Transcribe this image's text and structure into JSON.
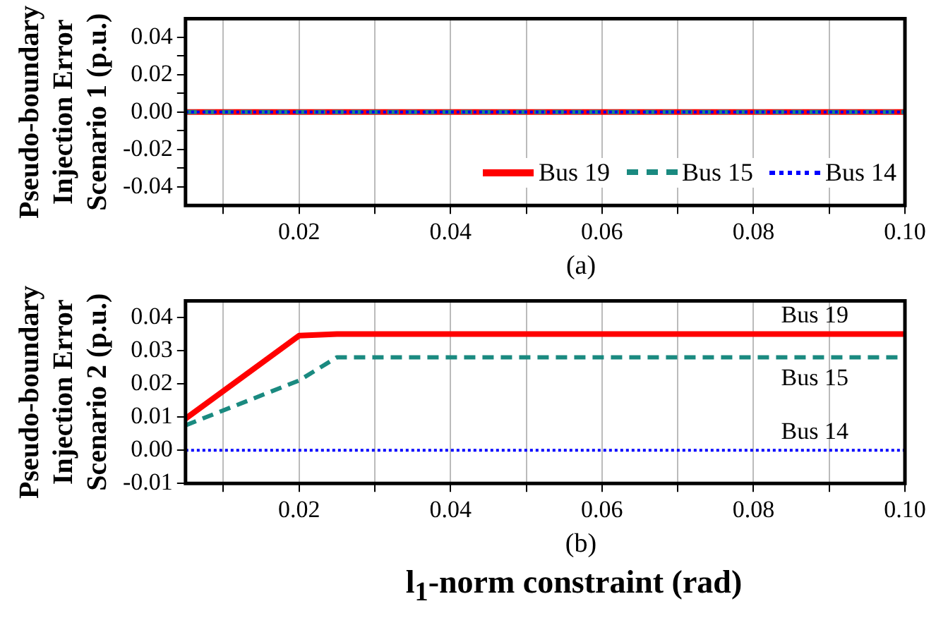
{
  "chart_data": [
    {
      "type": "line",
      "ylabel": "Pseudo-boundary\nInjection Error\nScenario 1 (p.u.)",
      "annotations": [
        "(a)"
      ],
      "xlim": [
        0.005,
        0.1
      ],
      "xticks": [
        {
          "value": 0.01,
          "label": null
        },
        0.02,
        {
          "value": 0.03,
          "label": null
        },
        0.04,
        {
          "value": 0.05,
          "label": null
        },
        0.06,
        {
          "value": 0.07,
          "label": null
        },
        0.08,
        {
          "value": 0.09,
          "label": null
        },
        {
          "value": 0.1,
          "label": "0.10"
        }
      ],
      "ylim": [
        -0.05,
        0.05
      ],
      "yticks": [
        {
          "value": -0.04,
          "label": "-0.04"
        },
        {
          "value": -0.03,
          "label": null
        },
        {
          "value": -0.02,
          "label": "-0.02"
        },
        {
          "value": -0.01,
          "label": null
        },
        {
          "value": 0,
          "label": "0.00"
        },
        {
          "value": 0.01,
          "label": null
        },
        0.02,
        {
          "value": 0.03,
          "label": null
        },
        0.04
      ],
      "grid": "x",
      "legend": "bottom right",
      "marker": "none",
      "series": [
        {
          "name": "Bus 19",
          "color": "#ff0000",
          "line_style": "solid",
          "x": [
            0.005,
            0.1
          ],
          "values": [
            0,
            0
          ]
        },
        {
          "name": "Bus 15",
          "color": "#1a8a80",
          "line_style": "dashed",
          "x": [
            0.005,
            0.1
          ],
          "values": [
            0,
            0
          ]
        },
        {
          "name": "Bus 14",
          "color": "#0000ff",
          "line_style": "dotted",
          "x": [
            0.005,
            0.1
          ],
          "values": [
            0,
            0
          ]
        }
      ]
    },
    {
      "type": "line",
      "ylabel": "Pseudo-boundary\nInjection Error\nScenario 2 (p.u.)",
      "xlabel": "l$_{1}$-norm constraint (rad)",
      "annotations": [
        "(b)"
      ],
      "xlim": [
        0.005,
        0.1
      ],
      "xticks": [
        {
          "value": 0.01,
          "label": null
        },
        0.02,
        {
          "value": 0.03,
          "label": null
        },
        0.04,
        {
          "value": 0.05,
          "label": null
        },
        0.06,
        {
          "value": 0.07,
          "label": null
        },
        0.08,
        {
          "value": 0.09,
          "label": null
        },
        {
          "value": 0.1,
          "label": "0.10"
        }
      ],
      "ylim": [
        -0.01,
        0.045
      ],
      "yticks": [
        -0.01,
        {
          "value": 0,
          "label": "0.00"
        },
        0.01,
        0.02,
        0.03,
        0.04
      ],
      "grid": "x",
      "marker": "none",
      "series": [
        {
          "name": "Bus 19",
          "color": "#ff0000",
          "line_style": "solid",
          "x": [
            0.005,
            0.02,
            0.025,
            0.1
          ],
          "values": [
            0.0095,
            0.0345,
            0.035,
            0.035
          ]
        },
        {
          "name": "Bus 15",
          "color": "#1a8a80",
          "line_style": "dashed",
          "x": [
            0.005,
            0.02,
            0.025,
            0.1
          ],
          "values": [
            0.0075,
            0.021,
            0.028,
            0.028
          ]
        },
        {
          "name": "Bus 14",
          "color": "#0000ff",
          "line_style": "dotted",
          "x": [
            0.005,
            0.1
          ],
          "values": [
            0,
            0
          ]
        }
      ]
    }
  ]
}
